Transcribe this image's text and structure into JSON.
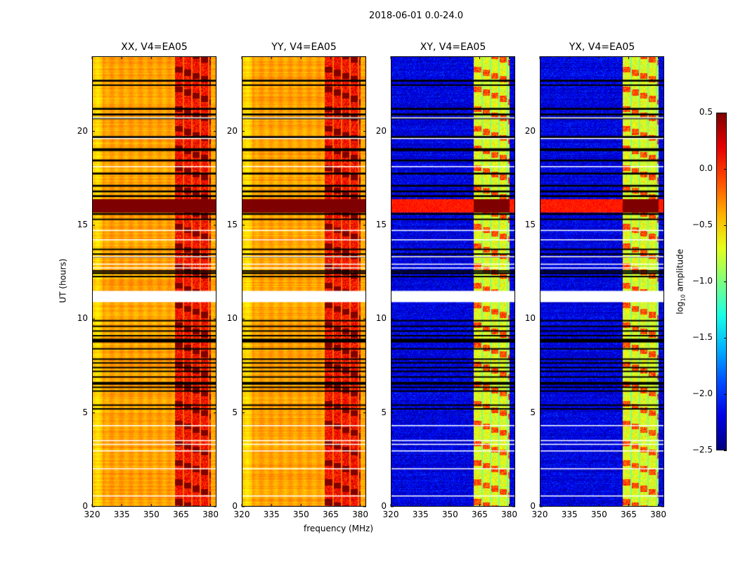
{
  "chart_data": {
    "type": "heatmap",
    "title": "2018-06-01 0.0-24.0",
    "xlabel": "frequency (MHz)",
    "ylabel": "UT (hours)",
    "xlim": [
      320,
      383
    ],
    "ylim": [
      0,
      24
    ],
    "xticks": [
      "320",
      "335",
      "350",
      "365",
      "380"
    ],
    "xtick_values": [
      320,
      335,
      350,
      365,
      380
    ],
    "yticks": [
      "0",
      "5",
      "10",
      "15",
      "20"
    ],
    "ytick_values": [
      0,
      5,
      10,
      15,
      20
    ],
    "panels": [
      {
        "title": "XX, V4=EA05",
        "base_level": -0.35,
        "rfi_level": 0.0
      },
      {
        "title": "YY, V4=EA05",
        "base_level": -0.35,
        "rfi_level": 0.0
      },
      {
        "title": "XY, V4=EA05",
        "base_level": -2.2,
        "rfi_level": -0.8
      },
      {
        "title": "YX, V4=EA05",
        "base_level": -2.2,
        "rfi_level": -0.8
      }
    ],
    "rfi_band_mhz": [
      362,
      380
    ],
    "high_power_hours": [
      15.7,
      16.4
    ],
    "high_power_level": 0.5,
    "flagged_white_hours": [
      [
        10.9,
        11.5
      ],
      [
        20.7,
        20.75
      ],
      [
        19.6,
        19.65
      ],
      [
        18.1,
        18.15
      ],
      [
        14.7,
        14.75
      ],
      [
        14.2,
        14.25
      ],
      [
        13.3,
        13.35
      ],
      [
        12.9,
        12.95
      ],
      [
        12.7,
        12.75
      ],
      [
        4.3,
        4.35
      ],
      [
        3.5,
        3.55
      ],
      [
        3.3,
        3.35
      ],
      [
        2.95,
        3.0
      ],
      [
        2.0,
        2.05
      ],
      [
        0.55,
        0.6
      ]
    ],
    "flagged_black_hours": [
      [
        22.65,
        22.75
      ],
      [
        22.45,
        22.5
      ],
      [
        21.15,
        21.25
      ],
      [
        20.85,
        20.95
      ],
      [
        20.65,
        20.75
      ],
      [
        19.65,
        19.75
      ],
      [
        18.95,
        19.1
      ],
      [
        18.4,
        18.5
      ],
      [
        17.7,
        17.8
      ],
      [
        17.05,
        17.15
      ],
      [
        16.75,
        16.85
      ],
      [
        16.5,
        16.6
      ],
      [
        15.55,
        15.65
      ],
      [
        15.3,
        15.35
      ],
      [
        13.7,
        13.75
      ],
      [
        13.45,
        13.5
      ],
      [
        13.3,
        13.35
      ],
      [
        12.55,
        12.6
      ],
      [
        12.4,
        12.5
      ],
      [
        12.25,
        12.3
      ],
      [
        9.9,
        9.95
      ],
      [
        9.6,
        9.65
      ],
      [
        9.35,
        9.4
      ],
      [
        9.1,
        9.15
      ],
      [
        8.75,
        8.95
      ],
      [
        8.4,
        8.45
      ],
      [
        7.85,
        7.9
      ],
      [
        7.65,
        7.7
      ],
      [
        7.4,
        7.45
      ],
      [
        7.2,
        7.25
      ],
      [
        6.9,
        6.95
      ],
      [
        6.5,
        6.65
      ],
      [
        6.35,
        6.4
      ],
      [
        6.15,
        6.2
      ],
      [
        5.4,
        5.45
      ],
      [
        5.2,
        5.25
      ]
    ],
    "colorbar": {
      "label": "log10 amplitude",
      "label_base": "log",
      "label_sub": "10",
      "label_rest": " amplitude",
      "range": [
        -2.5,
        0.5
      ],
      "ticks": [
        "0.5",
        "0.0",
        "−0.5",
        "−1.0",
        "−1.5",
        "−2.0",
        "−2.5"
      ],
      "tick_values": [
        0.5,
        0.0,
        -0.5,
        -1.0,
        -1.5,
        -2.0,
        -2.5
      ],
      "colormap": "jet"
    }
  }
}
